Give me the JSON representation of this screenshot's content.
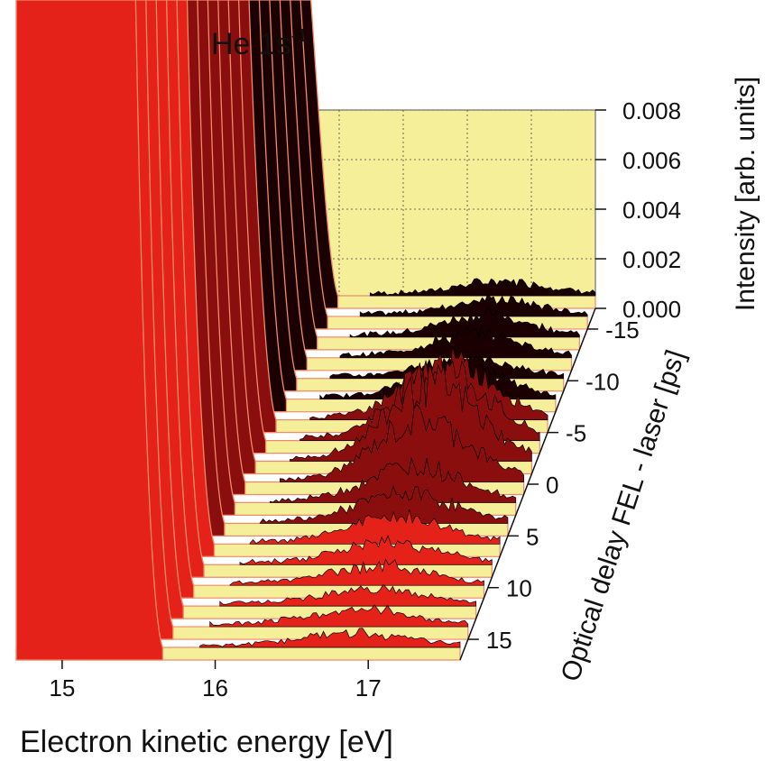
{
  "chart_data": {
    "type": "area",
    "title": "He 1s",
    "title_superscript": "-1",
    "xlabel": "Electron kinetic energy [eV]",
    "ylabel": "Optical delay FEL - laser [ps]",
    "zlabel": "Intensity [arb. units]",
    "x_ticks": [
      "15",
      "16",
      "17"
    ],
    "x_range": [
      14.7,
      17.6
    ],
    "y_ticks": [
      "-15",
      "-10",
      "-5",
      "0",
      "5",
      "10",
      "15"
    ],
    "y_range": [
      -17,
      17
    ],
    "z_ticks": [
      "0.000",
      "0.002",
      "0.004",
      "0.006",
      "0.008"
    ],
    "z_range": [
      0,
      0.008
    ],
    "grid": true,
    "colors": {
      "wall": "#f5ef9a",
      "fill_dark": "#1a0000",
      "fill_mid": "#8b0e0e",
      "fill_bright": "#e52219",
      "edge": "#f08a6a"
    },
    "series": [
      {
        "delay": -17,
        "feature_height": 0.0005
      },
      {
        "delay": -15,
        "feature_height": 0.0006
      },
      {
        "delay": -13,
        "feature_height": 0.0008
      },
      {
        "delay": -11,
        "feature_height": 0.0009
      },
      {
        "delay": -9,
        "feature_height": 0.0007
      },
      {
        "delay": -7,
        "feature_height": 0.0012
      },
      {
        "delay": -5,
        "feature_height": 0.0022
      },
      {
        "delay": -3,
        "feature_height": 0.0028
      },
      {
        "delay": -1,
        "feature_height": 0.003
      },
      {
        "delay": 1,
        "feature_height": 0.0024
      },
      {
        "delay": 3,
        "feature_height": 0.0014
      },
      {
        "delay": 5,
        "feature_height": 0.0011
      },
      {
        "delay": 7,
        "feature_height": 0.001
      },
      {
        "delay": 9,
        "feature_height": 0.0008
      },
      {
        "delay": 11,
        "feature_height": 0.0007
      },
      {
        "delay": 13,
        "feature_height": 0.0006
      },
      {
        "delay": 15,
        "feature_height": 0.0006
      },
      {
        "delay": 17,
        "feature_height": 0.0005
      }
    ]
  }
}
